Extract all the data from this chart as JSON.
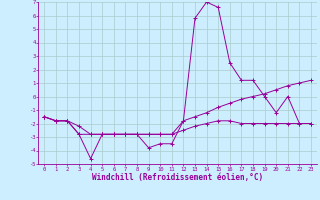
{
  "x": [
    0,
    1,
    2,
    3,
    4,
    5,
    6,
    7,
    8,
    9,
    10,
    11,
    12,
    13,
    14,
    15,
    16,
    17,
    18,
    19,
    20,
    21,
    22,
    23
  ],
  "line1": [
    -1.5,
    -1.8,
    -1.8,
    -2.8,
    -4.6,
    -2.8,
    -2.8,
    -2.8,
    -2.8,
    -3.8,
    -3.5,
    -3.5,
    -1.8,
    5.8,
    7.0,
    6.6,
    2.5,
    1.2,
    1.2,
    0.0,
    -1.2,
    0.0,
    -2.0,
    -2.0
  ],
  "line2": [
    -1.5,
    -1.8,
    -1.8,
    -2.2,
    -2.8,
    -2.8,
    -2.8,
    -2.8,
    -2.8,
    -2.8,
    -2.8,
    -2.8,
    -1.8,
    -1.5,
    -1.2,
    -0.8,
    -0.5,
    -0.2,
    0.0,
    0.2,
    0.5,
    0.8,
    1.0,
    1.2
  ],
  "line3": [
    -1.5,
    -1.8,
    -1.8,
    -2.8,
    -2.8,
    -2.8,
    -2.8,
    -2.8,
    -2.8,
    -2.8,
    -2.8,
    -2.8,
    -2.5,
    -2.2,
    -2.0,
    -1.8,
    -1.8,
    -2.0,
    -2.0,
    -2.0,
    -2.0,
    -2.0,
    -2.0,
    -2.0
  ],
  "color": "#990099",
  "bg_color": "#cceeff",
  "grid_color": "#aacccc",
  "xlim": [
    -0.5,
    23.5
  ],
  "ylim": [
    -5,
    7
  ],
  "xlabel": "Windchill (Refroidissement éolien,°C)",
  "yticks": [
    -5,
    -4,
    -3,
    -2,
    -1,
    0,
    1,
    2,
    3,
    4,
    5,
    6,
    7
  ],
  "xticks": [
    0,
    1,
    2,
    3,
    4,
    5,
    6,
    7,
    8,
    9,
    10,
    11,
    12,
    13,
    14,
    15,
    16,
    17,
    18,
    19,
    20,
    21,
    22,
    23
  ],
  "linewidth": 0.7,
  "markersize": 2.5,
  "tick_fontsize": 4.0,
  "xlabel_fontsize": 5.5
}
